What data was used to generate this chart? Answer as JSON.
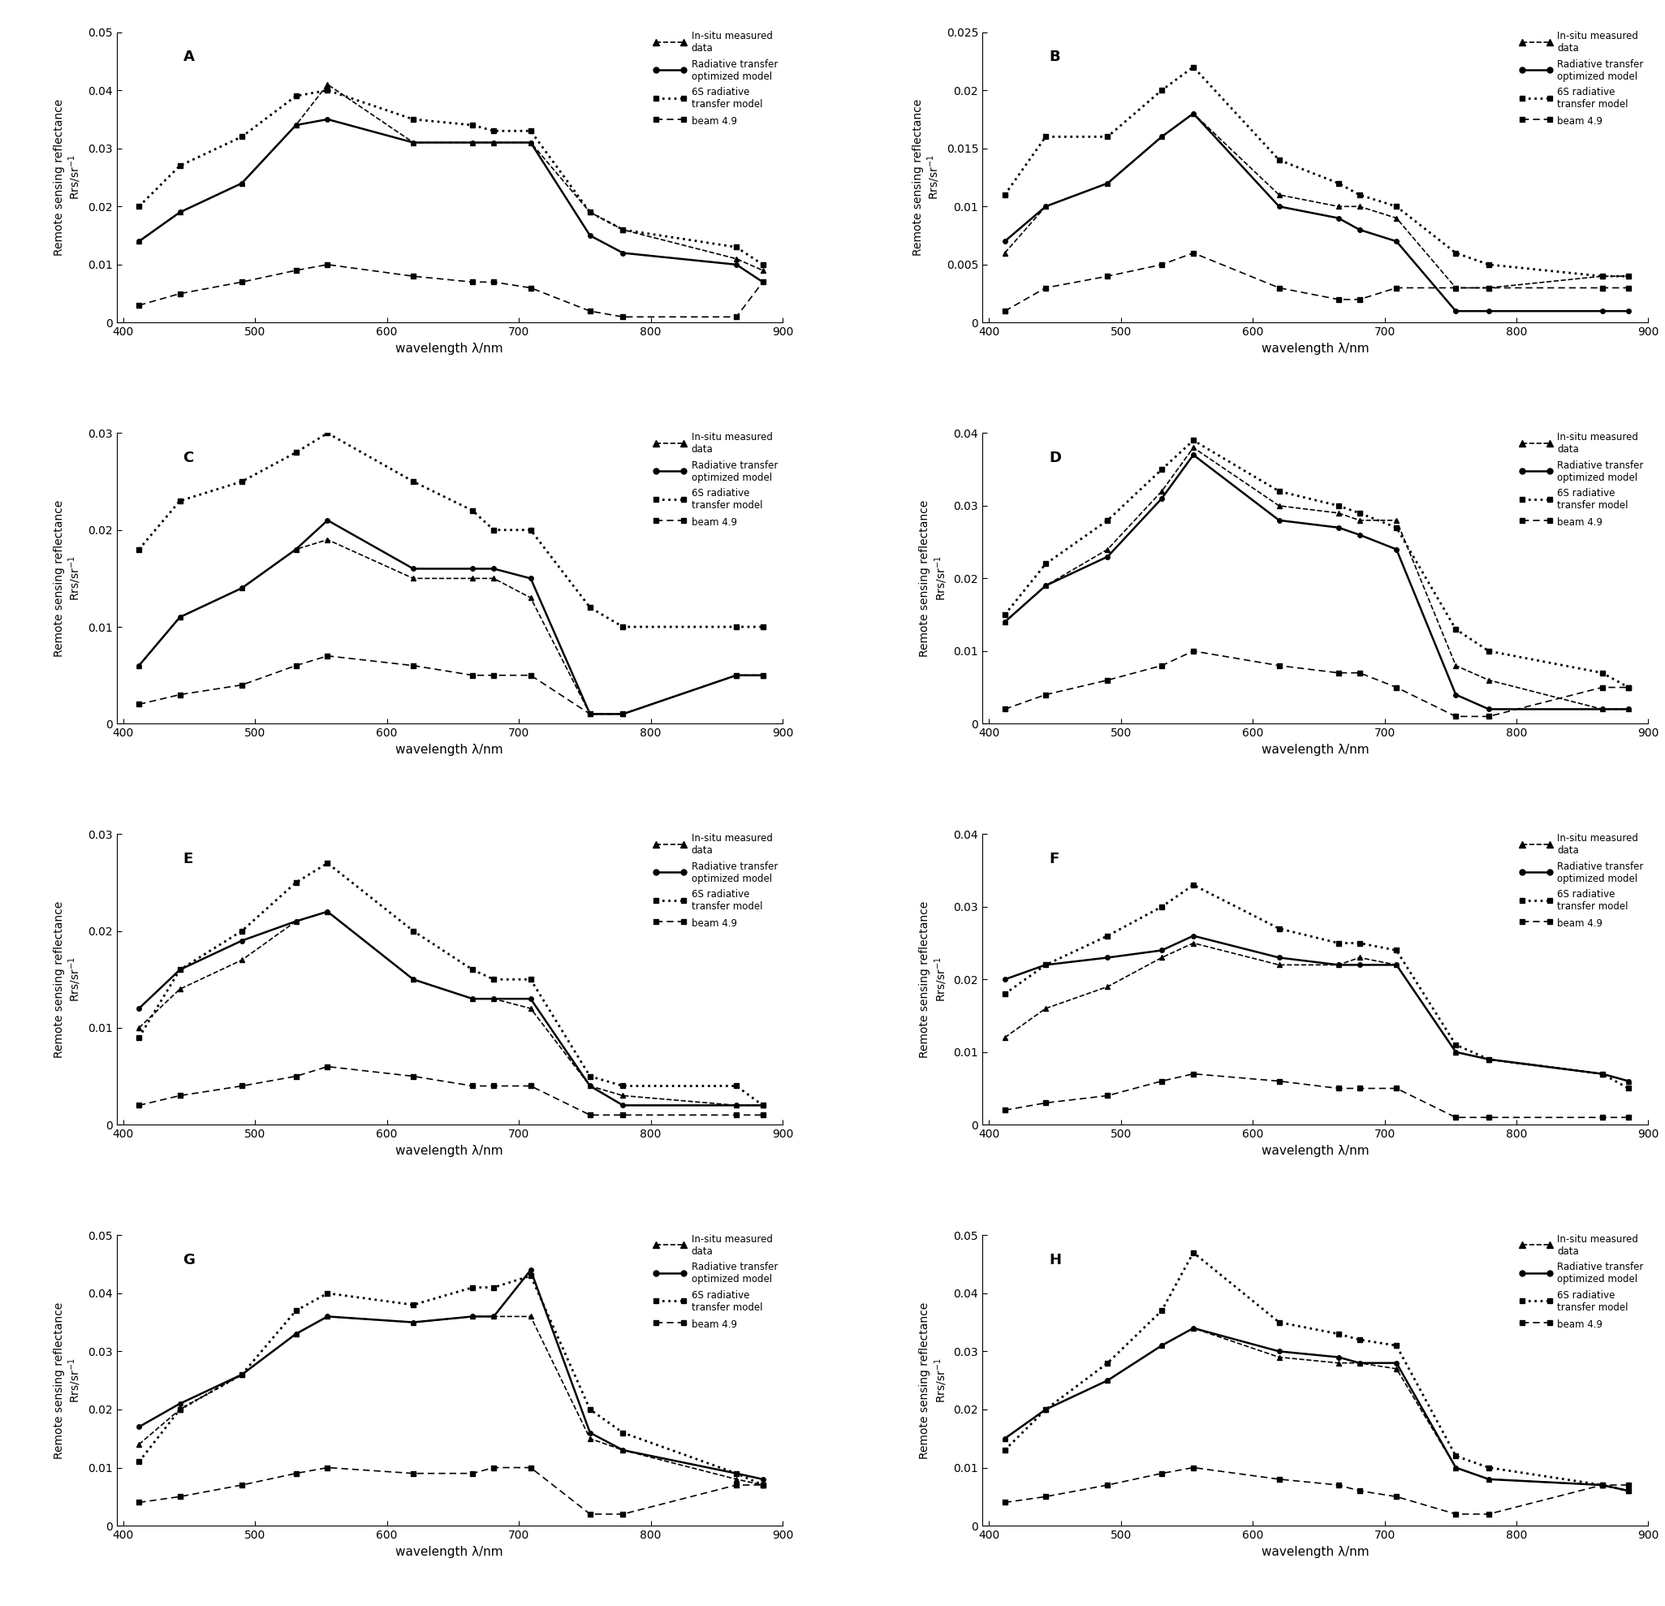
{
  "wavelengths": [
    412,
    443,
    490,
    531,
    555,
    620,
    665,
    681,
    709,
    754,
    779,
    865,
    885
  ],
  "panels": {
    "A": {
      "ylim": [
        0,
        0.05
      ],
      "yticks": [
        0,
        0.01,
        0.02,
        0.03,
        0.04,
        0.05
      ],
      "insitu": [
        0.014,
        0.019,
        0.024,
        0.034,
        0.041,
        0.031,
        0.031,
        0.031,
        0.031,
        0.019,
        0.016,
        0.011,
        0.009
      ],
      "radtransfer": [
        0.014,
        0.019,
        0.024,
        0.034,
        0.035,
        0.031,
        0.031,
        0.031,
        0.031,
        0.015,
        0.012,
        0.01,
        0.007
      ],
      "sixs": [
        0.02,
        0.027,
        0.032,
        0.039,
        0.04,
        0.035,
        0.034,
        0.033,
        0.033,
        0.019,
        0.016,
        0.013,
        0.01
      ],
      "beam": [
        0.003,
        0.005,
        0.007,
        0.009,
        0.01,
        0.008,
        0.007,
        0.007,
        0.006,
        0.002,
        0.001,
        0.001,
        0.007
      ]
    },
    "B": {
      "ylim": [
        0,
        0.025
      ],
      "yticks": [
        0,
        0.005,
        0.01,
        0.015,
        0.02,
        0.025
      ],
      "insitu": [
        0.006,
        0.01,
        0.012,
        0.016,
        0.018,
        0.011,
        0.01,
        0.01,
        0.009,
        0.003,
        0.003,
        0.004,
        0.004
      ],
      "radtransfer": [
        0.007,
        0.01,
        0.012,
        0.016,
        0.018,
        0.01,
        0.009,
        0.008,
        0.007,
        0.001,
        0.001,
        0.001,
        0.001
      ],
      "sixs": [
        0.011,
        0.016,
        0.016,
        0.02,
        0.022,
        0.014,
        0.012,
        0.011,
        0.01,
        0.006,
        0.005,
        0.004,
        0.004
      ],
      "beam": [
        0.001,
        0.003,
        0.004,
        0.005,
        0.006,
        0.003,
        0.002,
        0.002,
        0.003,
        0.003,
        0.003,
        0.003,
        0.003
      ]
    },
    "C": {
      "ylim": [
        0,
        0.03
      ],
      "yticks": [
        0,
        0.01,
        0.02,
        0.03
      ],
      "insitu": [
        0.006,
        0.011,
        0.014,
        0.018,
        0.019,
        0.015,
        0.015,
        0.015,
        0.013,
        0.001,
        0.001,
        0.005,
        0.005
      ],
      "radtransfer": [
        0.006,
        0.011,
        0.014,
        0.018,
        0.021,
        0.016,
        0.016,
        0.016,
        0.015,
        0.001,
        0.001,
        0.005,
        0.005
      ],
      "sixs": [
        0.018,
        0.023,
        0.025,
        0.028,
        0.03,
        0.025,
        0.022,
        0.02,
        0.02,
        0.012,
        0.01,
        0.01,
        0.01
      ],
      "beam": [
        0.002,
        0.003,
        0.004,
        0.006,
        0.007,
        0.006,
        0.005,
        0.005,
        0.005,
        0.001,
        0.001,
        0.005,
        0.005
      ]
    },
    "D": {
      "ylim": [
        0,
        0.04
      ],
      "yticks": [
        0,
        0.01,
        0.02,
        0.03,
        0.04
      ],
      "insitu": [
        0.014,
        0.019,
        0.024,
        0.032,
        0.038,
        0.03,
        0.029,
        0.028,
        0.028,
        0.008,
        0.006,
        0.002,
        0.002
      ],
      "radtransfer": [
        0.014,
        0.019,
        0.023,
        0.031,
        0.037,
        0.028,
        0.027,
        0.026,
        0.024,
        0.004,
        0.002,
        0.002,
        0.002
      ],
      "sixs": [
        0.015,
        0.022,
        0.028,
        0.035,
        0.039,
        0.032,
        0.03,
        0.029,
        0.027,
        0.013,
        0.01,
        0.007,
        0.005
      ],
      "beam": [
        0.002,
        0.004,
        0.006,
        0.008,
        0.01,
        0.008,
        0.007,
        0.007,
        0.005,
        0.001,
        0.001,
        0.005,
        0.005
      ]
    },
    "E": {
      "ylim": [
        0,
        0.03
      ],
      "yticks": [
        0,
        0.01,
        0.02,
        0.03
      ],
      "insitu": [
        0.01,
        0.014,
        0.017,
        0.021,
        0.022,
        0.015,
        0.013,
        0.013,
        0.012,
        0.004,
        0.003,
        0.002,
        0.002
      ],
      "radtransfer": [
        0.012,
        0.016,
        0.019,
        0.021,
        0.022,
        0.015,
        0.013,
        0.013,
        0.013,
        0.004,
        0.002,
        0.002,
        0.002
      ],
      "sixs": [
        0.009,
        0.016,
        0.02,
        0.025,
        0.027,
        0.02,
        0.016,
        0.015,
        0.015,
        0.005,
        0.004,
        0.004,
        0.002
      ],
      "beam": [
        0.002,
        0.003,
        0.004,
        0.005,
        0.006,
        0.005,
        0.004,
        0.004,
        0.004,
        0.001,
        0.001,
        0.001,
        0.001
      ]
    },
    "F": {
      "ylim": [
        0,
        0.04
      ],
      "yticks": [
        0,
        0.01,
        0.02,
        0.03,
        0.04
      ],
      "insitu": [
        0.012,
        0.016,
        0.019,
        0.023,
        0.025,
        0.022,
        0.022,
        0.023,
        0.022,
        0.01,
        0.009,
        0.007,
        0.006
      ],
      "radtransfer": [
        0.02,
        0.022,
        0.023,
        0.024,
        0.026,
        0.023,
        0.022,
        0.022,
        0.022,
        0.01,
        0.009,
        0.007,
        0.006
      ],
      "sixs": [
        0.018,
        0.022,
        0.026,
        0.03,
        0.033,
        0.027,
        0.025,
        0.025,
        0.024,
        0.011,
        0.009,
        0.007,
        0.005
      ],
      "beam": [
        0.002,
        0.003,
        0.004,
        0.006,
        0.007,
        0.006,
        0.005,
        0.005,
        0.005,
        0.001,
        0.001,
        0.001,
        0.001
      ]
    },
    "G": {
      "ylim": [
        0,
        0.05
      ],
      "yticks": [
        0,
        0.01,
        0.02,
        0.03,
        0.04,
        0.05
      ],
      "insitu": [
        0.014,
        0.02,
        0.026,
        0.033,
        0.036,
        0.035,
        0.036,
        0.036,
        0.036,
        0.015,
        0.013,
        0.008,
        0.007
      ],
      "radtransfer": [
        0.017,
        0.021,
        0.026,
        0.033,
        0.036,
        0.035,
        0.036,
        0.036,
        0.044,
        0.016,
        0.013,
        0.009,
        0.008
      ],
      "sixs": [
        0.011,
        0.02,
        0.026,
        0.037,
        0.04,
        0.038,
        0.041,
        0.041,
        0.043,
        0.02,
        0.016,
        0.009,
        0.007
      ],
      "beam": [
        0.004,
        0.005,
        0.007,
        0.009,
        0.01,
        0.009,
        0.009,
        0.01,
        0.01,
        0.002,
        0.002,
        0.007,
        0.007
      ]
    },
    "H": {
      "ylim": [
        0,
        0.05
      ],
      "yticks": [
        0,
        0.01,
        0.02,
        0.03,
        0.04,
        0.05
      ],
      "insitu": [
        0.015,
        0.02,
        0.025,
        0.031,
        0.034,
        0.029,
        0.028,
        0.028,
        0.027,
        0.01,
        0.008,
        0.007,
        0.006
      ],
      "radtransfer": [
        0.015,
        0.02,
        0.025,
        0.031,
        0.034,
        0.03,
        0.029,
        0.028,
        0.028,
        0.01,
        0.008,
        0.007,
        0.006
      ],
      "sixs": [
        0.013,
        0.02,
        0.028,
        0.037,
        0.047,
        0.035,
        0.033,
        0.032,
        0.031,
        0.012,
        0.01,
        0.007,
        0.006
      ],
      "beam": [
        0.004,
        0.005,
        0.007,
        0.009,
        0.01,
        0.008,
        0.007,
        0.006,
        0.005,
        0.002,
        0.002,
        0.007,
        0.007
      ]
    }
  },
  "xlabel": "wavelength λ/nm",
  "xticks": [
    400,
    500,
    600,
    700,
    800,
    900
  ],
  "legend_labels": [
    "In-situ measured\ndata",
    "Radiative transfer\noptimized model",
    "6S radiative\ntransfer model",
    "beam 4.9"
  ]
}
